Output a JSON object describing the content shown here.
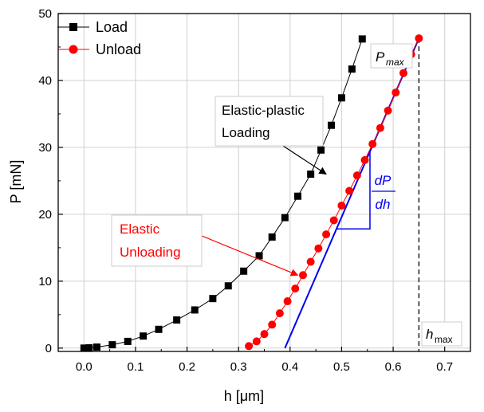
{
  "chart_data": {
    "type": "scatter",
    "xlabel": "h [μm]",
    "ylabel": "P [mN]",
    "xlim": [
      -0.05,
      0.75
    ],
    "ylim": [
      -0.5,
      50
    ],
    "xticks": [
      "0.0",
      "0.1",
      "0.2",
      "0.3",
      "0.4",
      "0.5",
      "0.6",
      "0.7"
    ],
    "yticks": [
      "0",
      "10",
      "20",
      "30",
      "40",
      "50"
    ],
    "grid": true,
    "legend_position": "top-left",
    "series": [
      {
        "name": "Load",
        "color": "#000000",
        "marker": "square",
        "x": [
          0.0,
          0.01,
          0.025,
          0.055,
          0.085,
          0.115,
          0.145,
          0.18,
          0.215,
          0.25,
          0.28,
          0.31,
          0.34,
          0.365,
          0.39,
          0.415,
          0.44,
          0.46,
          0.48,
          0.5,
          0.52,
          0.54,
          0.56,
          0.58,
          0.6,
          0.62,
          0.645
        ],
        "y": [
          0.0,
          0.05,
          0.15,
          0.5,
          1.0,
          1.8,
          2.8,
          4.2,
          5.7,
          7.4,
          9.3,
          11.5,
          13.8,
          16.6,
          19.5,
          22.7,
          26.0,
          29.6,
          33.3,
          37.4,
          41.7,
          46.2,
          null,
          null,
          null,
          null,
          null
        ]
      },
      {
        "name": "Unload",
        "color": "#ff0000",
        "marker": "circle",
        "x": [
          0.32,
          0.335,
          0.35,
          0.365,
          0.38,
          0.395,
          0.41,
          0.425,
          0.44,
          0.455,
          0.47,
          0.485,
          0.5,
          0.515,
          0.53,
          0.545,
          0.56,
          0.575,
          0.59,
          0.605,
          0.62,
          0.635,
          0.65
        ],
        "y": [
          0.3,
          1.0,
          2.1,
          3.5,
          5.2,
          7.0,
          8.9,
          10.9,
          12.9,
          14.9,
          17.0,
          19.1,
          21.3,
          23.5,
          25.8,
          28.1,
          30.5,
          32.9,
          35.5,
          38.2,
          41.1,
          43.9,
          46.3
        ]
      }
    ],
    "tangent_line": {
      "color": "#0000ee",
      "x": [
        0.39,
        0.65
      ],
      "y": [
        0.0,
        46.3
      ]
    },
    "annotations": {
      "elastic_plastic_line1": "Elastic-plastic",
      "elastic_plastic_line2": "Loading",
      "elastic_line1": "Elastic",
      "elastic_line2": "Unloading",
      "slope_top": "dP",
      "slope_bottom": "dh",
      "pmax_main": "P",
      "pmax_sub": "max",
      "hmax_main": "h",
      "hmax_sub": "max"
    }
  }
}
